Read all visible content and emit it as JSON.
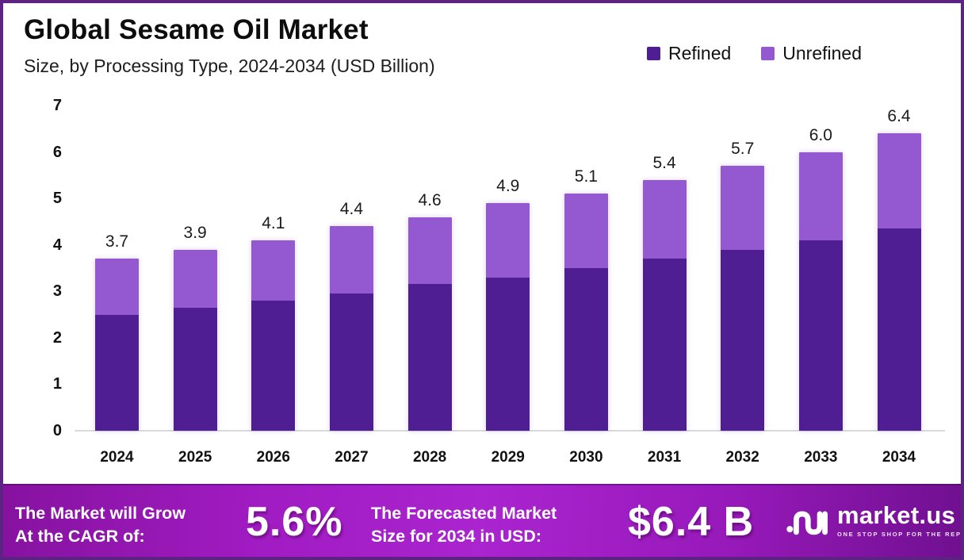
{
  "header": {
    "title": "Global Sesame Oil Market",
    "subtitle": "Size, by Processing Type, 2024-2034 (USD Billion)"
  },
  "legend": [
    {
      "label": "Refined",
      "color": "#4E1E92"
    },
    {
      "label": "Unrefined",
      "color": "#9458D0"
    }
  ],
  "chart_data": {
    "type": "bar",
    "stacked": true,
    "title": "Global Sesame Oil Market Size, by Processing Type, 2024-2034 (USD Billion)",
    "categories": [
      "2024",
      "2025",
      "2026",
      "2027",
      "2028",
      "2029",
      "2030",
      "2031",
      "2032",
      "2033",
      "2034"
    ],
    "series": [
      {
        "name": "Refined",
        "color": "#4E1E92",
        "values": [
          2.5,
          2.65,
          2.8,
          2.95,
          3.15,
          3.3,
          3.5,
          3.7,
          3.9,
          4.1,
          4.35
        ]
      },
      {
        "name": "Unrefined",
        "color": "#9458D0",
        "values": [
          1.2,
          1.25,
          1.3,
          1.45,
          1.45,
          1.6,
          1.6,
          1.7,
          1.8,
          1.9,
          2.05
        ]
      }
    ],
    "totals": [
      3.7,
      3.9,
      4.1,
      4.4,
      4.6,
      4.9,
      5.1,
      5.4,
      5.7,
      6.0,
      6.4
    ],
    "total_labels": [
      "3.7",
      "3.9",
      "4.1",
      "4.4",
      "4.6",
      "4.9",
      "5.1",
      "5.4",
      "5.7",
      "6.0",
      "6.4"
    ],
    "xlabel": "",
    "ylabel": "",
    "ylim": [
      0,
      7
    ],
    "y_ticks": [
      0,
      1,
      2,
      3,
      4,
      5,
      6,
      7
    ],
    "grid": false,
    "legend_position": "top-right"
  },
  "footer": {
    "cagr_label_line1": "The Market will Grow",
    "cagr_label_line2": "At the CAGR of:",
    "cagr_value": "5.6%",
    "forecast_label_line1": "The Forecasted Market",
    "forecast_label_line2": "Size for 2034 in USD:",
    "forecast_value": "$6.4 B",
    "brand": {
      "name": "market.us",
      "tagline": "ONE STOP SHOP FOR THE REPORTS"
    }
  }
}
